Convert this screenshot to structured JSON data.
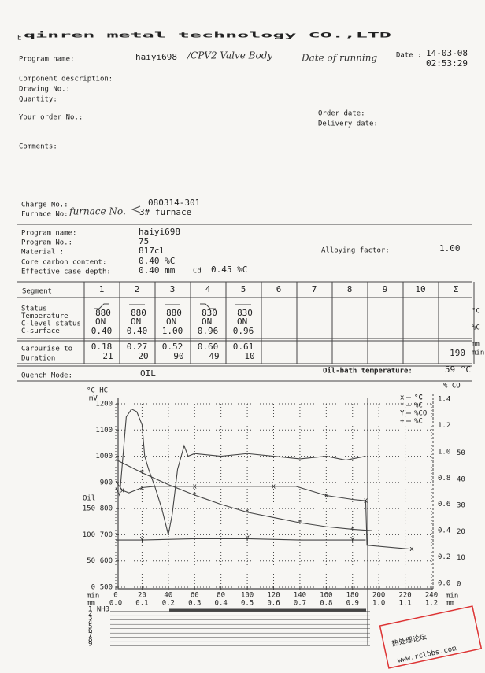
{
  "header": {
    "prefix": "E",
    "company": "qinren metal technology CO.,LTD"
  },
  "program": {
    "label": "Program name:",
    "value": "haiyi698",
    "handwriting": "/CPV2 Valve Body",
    "handwriting2": "Date of running",
    "date_label": "Date :",
    "date": "14-03-08",
    "time": "02:53:29"
  },
  "fields": [
    "Component description:",
    "Drawing No.:",
    "Quantity:",
    "Your order No.:",
    "Order date:",
    "Delivery date:",
    "Comments:"
  ],
  "charge": {
    "charge_label": "Charge No.:",
    "furnace_label": "Furnace No:",
    "handwriting": "furnace No.",
    "charge": "080314-301",
    "furnace": "3# furnace"
  },
  "details": {
    "labels": [
      "Program name:",
      "Program No.:",
      "Material :",
      "Core carbon content:",
      "Effective case depth:"
    ],
    "values": [
      "haiyi698",
      "75",
      "817cl",
      "0.40 %C",
      "0.40 mm"
    ],
    "cd_label": "Cd",
    "cd_value": "0.45 %C",
    "alloy_label": "Alloying factor:",
    "alloy_value": "1.00"
  },
  "segments": {
    "label": "Segment",
    "columns": [
      "1",
      "2",
      "3",
      "4",
      "5",
      "6",
      "7",
      "8",
      "9",
      "10",
      "Σ"
    ],
    "status_labels": [
      "Status",
      "Temperature",
      "C-level status",
      "C-surface"
    ],
    "temperature": [
      "880",
      "880",
      "880",
      "830",
      "830"
    ],
    "c_level": [
      "ON",
      "ON",
      "ON",
      "ON",
      "ON"
    ],
    "c_surface": [
      "0.40",
      "0.40",
      "1.00",
      "0.96",
      "0.96"
    ],
    "units1": [
      "°C",
      "%C"
    ],
    "carb_labels": [
      "Carburise to",
      "Duration"
    ],
    "carburise": [
      "0.18",
      "0.27",
      "0.52",
      "0.60",
      "0.61"
    ],
    "duration": [
      "21",
      "20",
      "90",
      "49",
      "10"
    ],
    "total": "190",
    "units2": [
      "mm",
      "min"
    ]
  },
  "quench": {
    "label": "Quench Mode:",
    "value": "OIL",
    "oil_label": "Oil-bath temperature:",
    "oil_value": "59 °C"
  },
  "chart_data": {
    "type": "line",
    "x_label": "min",
    "x2_label": "mm",
    "y_unit": "°C HC",
    "y_unit2": "mV",
    "y3_unit": "% CO",
    "xlim": [
      0,
      240
    ],
    "xticks": [
      0,
      20,
      40,
      60,
      80,
      100,
      120,
      140,
      160,
      180,
      200,
      220,
      240
    ],
    "x2lim": [
      0,
      1.2
    ],
    "x2ticks": [
      {
        "value": 0,
        "label": "0.0"
      },
      0.1,
      0.2,
      0.3,
      0.4,
      0.5,
      0.6,
      0.7,
      0.8,
      0.9,
      {
        "value": 1,
        "label": "1.0"
      },
      1.1,
      1.2
    ],
    "ylim": [
      500,
      1200
    ],
    "yticks": [
      500,
      600,
      700,
      800,
      900,
      1000,
      1100,
      1200
    ],
    "oil_label": "Oil",
    "oil_lim": [
      0,
      350
    ],
    "oil_ticks": [
      0,
      50,
      100,
      150
    ],
    "y2lim": [
      0,
      1.4
    ],
    "y2ticks": [
      {
        "value": 0,
        "label": "0.0"
      },
      0.2,
      0.4,
      0.6,
      0.8,
      {
        "value": 1,
        "label": "1.0"
      },
      1.2,
      1.4
    ],
    "y3lim": [
      0,
      70
    ],
    "y3ticks": [
      0,
      10,
      20,
      30,
      40,
      50
    ],
    "grid": true,
    "series": [
      {
        "name": "°C",
        "marker": "x",
        "color": "#333",
        "axis": "y",
        "x": [
          0,
          5,
          10,
          20,
          30,
          60,
          90,
          120,
          137,
          160,
          180,
          190,
          191,
          225
        ],
        "values": [
          905,
          870,
          860,
          880,
          885,
          885,
          885,
          885,
          885,
          850,
          835,
          830,
          660,
          645
        ]
      },
      {
        "name": "%C",
        "marker": "*",
        "color": "#888",
        "axis": "y2",
        "x": [
          0,
          20,
          40,
          60,
          80,
          100,
          120,
          140,
          160,
          180,
          195
        ],
        "values": [
          0.94,
          0.84,
          0.75,
          0.67,
          0.6,
          0.54,
          0.5,
          0.46,
          0.43,
          0.41,
          0.4
        ]
      },
      {
        "name": "%CO",
        "marker": "Y",
        "color": "#555",
        "axis": "y3",
        "x": [
          0,
          20,
          60,
          100,
          140,
          180,
          190
        ],
        "values": [
          18,
          18,
          18.5,
          18.5,
          18,
          18,
          18
        ]
      },
      {
        "name": "%C",
        "marker": "+",
        "color": "#999",
        "axis": "y2",
        "x": [],
        "values": []
      },
      {
        "name": "mV",
        "marker": "",
        "color": "#777",
        "axis": "y",
        "x": [
          0,
          3,
          8,
          12,
          16,
          20,
          22,
          25,
          30,
          35,
          40,
          43,
          47,
          52,
          55,
          60,
          80,
          100,
          120,
          140,
          160,
          175,
          190
        ],
        "values": [
          880,
          850,
          1150,
          1180,
          1170,
          1120,
          1000,
          950,
          880,
          800,
          700,
          780,
          950,
          1040,
          1000,
          1010,
          1000,
          1010,
          1000,
          990,
          1000,
          985,
          1000
        ]
      }
    ],
    "gas_rows": [
      "1 NH3",
      "2",
      "3",
      "4",
      "5",
      "6",
      "7",
      "8",
      "9"
    ]
  },
  "stamp": {
    "title": "热处理论坛",
    "url": "www.rclbbs.com"
  }
}
